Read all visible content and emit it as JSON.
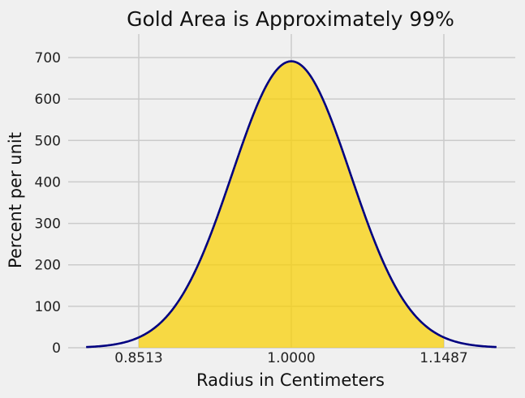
{
  "chart_data": {
    "type": "area",
    "title": "Gold Area is Approximately 99%",
    "xlabel": "Radius in Centimeters",
    "ylabel": "Percent per unit",
    "xlim": [
      0.816,
      1.134
    ],
    "ylim": [
      0,
      750
    ],
    "x_ticks": [
      {
        "value": 0.8513,
        "label": "0.8513"
      },
      {
        "value": 1.0,
        "label": "1.0000"
      },
      {
        "value": 1.1487,
        "label": "1.1487"
      }
    ],
    "y_ticks": [
      {
        "value": 0,
        "label": "0"
      },
      {
        "value": 100,
        "label": "100"
      },
      {
        "value": 200,
        "label": "200"
      },
      {
        "value": 300,
        "label": "300"
      },
      {
        "value": 400,
        "label": "400"
      },
      {
        "value": 500,
        "label": "500"
      },
      {
        "value": 600,
        "label": "600"
      },
      {
        "value": 700,
        "label": "700"
      }
    ],
    "curve": {
      "distribution": "normal",
      "mean": 1.0,
      "sd": 0.0577,
      "peak": 691,
      "x_range": [
        0.8,
        1.2
      ]
    },
    "shaded_region": [
      0.8513,
      1.1487
    ],
    "grid": true,
    "colors": {
      "curve": "#000080",
      "fill": "#f9d000",
      "background": "#f0f0f0",
      "grid": "#cbcbcb"
    }
  }
}
